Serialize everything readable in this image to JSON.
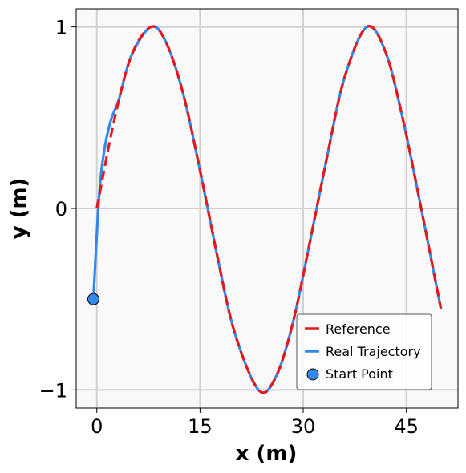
{
  "chart_data": {
    "type": "line",
    "xlabel": "x (m)",
    "ylabel": "y (m)",
    "xlim": [
      -3,
      52.5
    ],
    "ylim": [
      -1.1,
      1.1
    ],
    "xticks": [
      0,
      15,
      30,
      45
    ],
    "xtick_labels": [
      "0",
      "15",
      "30",
      "45"
    ],
    "yticks": [
      -1,
      0,
      1
    ],
    "ytick_labels": [
      "−1",
      "0",
      "1"
    ],
    "grid": true,
    "legend_position": "lower-right",
    "series": [
      {
        "name": "Reference",
        "color": "#e31a1c",
        "style": "dashed",
        "x": [
          0,
          2.5,
          5,
          7.85,
          10,
          12.5,
          15,
          17.5,
          20,
          23.5,
          26,
          28.5,
          31,
          33.5,
          36,
          39.25,
          42,
          44.5,
          47,
          50
        ],
        "y": [
          0,
          0.48,
          0.84,
          1.0,
          0.92,
          0.64,
          0.21,
          -0.26,
          -0.68,
          -1.0,
          -0.93,
          -0.63,
          -0.18,
          0.29,
          0.72,
          1.0,
          0.86,
          0.49,
          0.03,
          -0.55
        ]
      },
      {
        "name": "Real Trajectory",
        "color": "#3388ee",
        "style": "solid",
        "x": [
          -0.5,
          0.3,
          1.0,
          2.0,
          3.2,
          5.0,
          7.85,
          10,
          12.5,
          15,
          17.5,
          20,
          23.5,
          26,
          28.5,
          31,
          33.5,
          36,
          39.25,
          42,
          44.5,
          47,
          50
        ],
        "y": [
          -0.5,
          0.05,
          0.3,
          0.48,
          0.6,
          0.84,
          1.0,
          0.92,
          0.64,
          0.21,
          -0.26,
          -0.68,
          -1.0,
          -0.93,
          -0.63,
          -0.18,
          0.29,
          0.72,
          1.0,
          0.86,
          0.49,
          0.03,
          -0.55
        ]
      },
      {
        "name": "Start Point",
        "color": "#3388ee",
        "style": "marker",
        "x": [
          -0.5
        ],
        "y": [
          -0.5
        ]
      }
    ]
  }
}
